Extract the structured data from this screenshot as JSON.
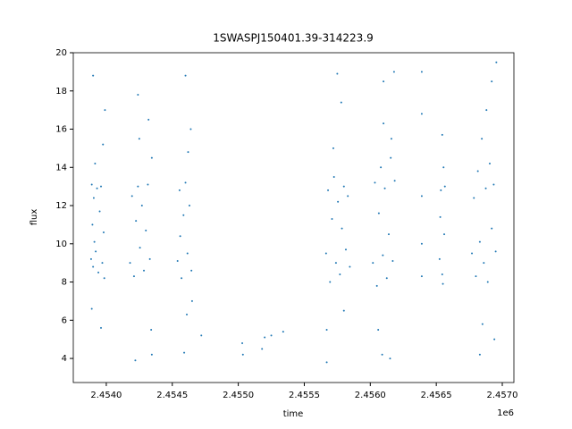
{
  "chart_data": {
    "type": "scatter",
    "title": "1SWASPJ150401.39-314223.9",
    "x_label": "time",
    "y_label": "flux",
    "x_offset_label": "1e6",
    "color": "#1f77b4",
    "xlim": [
      2453750,
      2457088
    ],
    "ylim": [
      2.74,
      20
    ],
    "xticks": [
      {
        "value": 2454000,
        "label": "2.4540"
      },
      {
        "value": 2454500,
        "label": "2.4545"
      },
      {
        "value": 2455000,
        "label": "2.4550"
      },
      {
        "value": 2455500,
        "label": "2.4555"
      },
      {
        "value": 2456000,
        "label": "2.4560"
      },
      {
        "value": 2456500,
        "label": "2.4565"
      },
      {
        "value": 2457000,
        "label": "2.4570"
      }
    ],
    "yticks": [
      4,
      6,
      8,
      10,
      12,
      14,
      16,
      18,
      20
    ],
    "x": [
      2453885,
      2453890,
      2453895,
      2453900,
      2453905,
      2453910,
      2453915,
      2453920,
      2453930,
      2453940,
      2453950,
      2453960,
      2453970,
      2453975,
      2453980,
      2453985,
      2453990,
      2453900,
      2453960,
      2453890,
      2454180,
      2454195,
      2454210,
      2454225,
      2454240,
      2454255,
      2454270,
      2454285,
      2454300,
      2454315,
      2454330,
      2454345,
      2454250,
      2454320,
      2454220,
      2454340,
      2454345,
      2454240,
      2454540,
      2454555,
      2454570,
      2454585,
      2454600,
      2454615,
      2454630,
      2454645,
      2454560,
      2454620,
      2454640,
      2454600,
      2454610,
      2454650,
      2454590,
      2454720,
      2455030,
      2455035,
      2455180,
      2455200,
      2455250,
      2455340,
      2455665,
      2455680,
      2455695,
      2455710,
      2455725,
      2455740,
      2455755,
      2455770,
      2455785,
      2455800,
      2455815,
      2455830,
      2455845,
      2455720,
      2455780,
      2455750,
      2455670,
      2455670,
      2455800,
      2456020,
      2456035,
      2456050,
      2456065,
      2456080,
      2456095,
      2456110,
      2456125,
      2456140,
      2456155,
      2456170,
      2456185,
      2456100,
      2456160,
      2456180,
      2456100,
      2456060,
      2456090,
      2456150,
      2456390,
      2456390,
      2456390,
      2456390,
      2456390,
      2456525,
      2456535,
      2456545,
      2456555,
      2456560,
      2456565,
      2456545,
      2456550,
      2456530,
      2456770,
      2456785,
      2456800,
      2456815,
      2456830,
      2456845,
      2456860,
      2456875,
      2456890,
      2456905,
      2456920,
      2456935,
      2456950,
      2456880,
      2456920,
      2456850,
      2456830,
      2456940,
      2456955
    ],
    "values": [
      9.2,
      13.1,
      11.0,
      8.8,
      12.4,
      10.1,
      14.2,
      9.6,
      12.9,
      8.5,
      11.7,
      13.0,
      9.0,
      15.2,
      10.6,
      8.2,
      17.0,
      18.8,
      5.6,
      6.6,
      9.0,
      12.5,
      8.3,
      11.2,
      13.0,
      9.8,
      12.0,
      8.6,
      10.7,
      13.1,
      9.2,
      14.5,
      15.5,
      16.5,
      3.9,
      5.5,
      4.2,
      17.8,
      9.1,
      12.8,
      8.2,
      11.5,
      13.2,
      9.5,
      12.0,
      8.6,
      10.4,
      14.8,
      16.0,
      18.8,
      6.3,
      7.0,
      4.3,
      5.2,
      4.8,
      4.2,
      4.5,
      5.1,
      5.2,
      5.4,
      9.5,
      12.8,
      8.0,
      11.3,
      13.5,
      9.0,
      12.2,
      8.4,
      10.8,
      13.0,
      9.7,
      12.5,
      8.8,
      15.0,
      17.4,
      18.9,
      5.5,
      3.8,
      6.5,
      9.0,
      13.2,
      7.8,
      11.6,
      14.0,
      9.4,
      12.9,
      8.2,
      10.5,
      14.5,
      9.1,
      13.3,
      16.3,
      15.5,
      19.0,
      18.5,
      5.5,
      4.2,
      4.0,
      19.0,
      16.8,
      12.5,
      10.0,
      8.3,
      9.2,
      12.8,
      8.4,
      14.0,
      10.5,
      13.0,
      15.7,
      7.9,
      11.4,
      9.5,
      12.4,
      8.3,
      13.8,
      10.1,
      15.5,
      9.0,
      12.9,
      8.0,
      14.2,
      10.8,
      13.1,
      9.6,
      17.0,
      18.5,
      5.8,
      4.2,
      5.0,
      19.5
    ]
  }
}
